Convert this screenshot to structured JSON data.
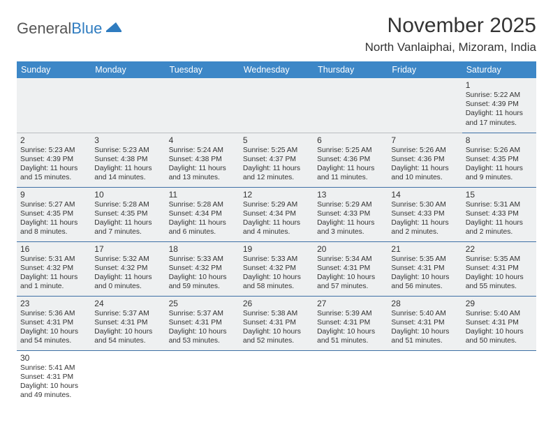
{
  "logo": {
    "text_general": "General",
    "text_blue": "Blue"
  },
  "title": "November 2025",
  "location": "North Vanlaiphai, Mizoram, India",
  "colors": {
    "header_bg": "#3d87c7",
    "header_text": "#ffffff",
    "cell_bg": "#eef0f1",
    "cell_border": "#3d6fa5",
    "logo_blue": "#2f7cc0"
  },
  "day_headers": [
    "Sunday",
    "Monday",
    "Tuesday",
    "Wednesday",
    "Thursday",
    "Friday",
    "Saturday"
  ],
  "weeks": [
    [
      null,
      null,
      null,
      null,
      null,
      null,
      {
        "n": "1",
        "sr": "Sunrise: 5:22 AM",
        "ss": "Sunset: 4:39 PM",
        "dl": "Daylight: 11 hours and 17 minutes."
      }
    ],
    [
      {
        "n": "2",
        "sr": "Sunrise: 5:23 AM",
        "ss": "Sunset: 4:39 PM",
        "dl": "Daylight: 11 hours and 15 minutes."
      },
      {
        "n": "3",
        "sr": "Sunrise: 5:23 AM",
        "ss": "Sunset: 4:38 PM",
        "dl": "Daylight: 11 hours and 14 minutes."
      },
      {
        "n": "4",
        "sr": "Sunrise: 5:24 AM",
        "ss": "Sunset: 4:38 PM",
        "dl": "Daylight: 11 hours and 13 minutes."
      },
      {
        "n": "5",
        "sr": "Sunrise: 5:25 AM",
        "ss": "Sunset: 4:37 PM",
        "dl": "Daylight: 11 hours and 12 minutes."
      },
      {
        "n": "6",
        "sr": "Sunrise: 5:25 AM",
        "ss": "Sunset: 4:36 PM",
        "dl": "Daylight: 11 hours and 11 minutes."
      },
      {
        "n": "7",
        "sr": "Sunrise: 5:26 AM",
        "ss": "Sunset: 4:36 PM",
        "dl": "Daylight: 11 hours and 10 minutes."
      },
      {
        "n": "8",
        "sr": "Sunrise: 5:26 AM",
        "ss": "Sunset: 4:35 PM",
        "dl": "Daylight: 11 hours and 9 minutes."
      }
    ],
    [
      {
        "n": "9",
        "sr": "Sunrise: 5:27 AM",
        "ss": "Sunset: 4:35 PM",
        "dl": "Daylight: 11 hours and 8 minutes."
      },
      {
        "n": "10",
        "sr": "Sunrise: 5:28 AM",
        "ss": "Sunset: 4:35 PM",
        "dl": "Daylight: 11 hours and 7 minutes."
      },
      {
        "n": "11",
        "sr": "Sunrise: 5:28 AM",
        "ss": "Sunset: 4:34 PM",
        "dl": "Daylight: 11 hours and 6 minutes."
      },
      {
        "n": "12",
        "sr": "Sunrise: 5:29 AM",
        "ss": "Sunset: 4:34 PM",
        "dl": "Daylight: 11 hours and 4 minutes."
      },
      {
        "n": "13",
        "sr": "Sunrise: 5:29 AM",
        "ss": "Sunset: 4:33 PM",
        "dl": "Daylight: 11 hours and 3 minutes."
      },
      {
        "n": "14",
        "sr": "Sunrise: 5:30 AM",
        "ss": "Sunset: 4:33 PM",
        "dl": "Daylight: 11 hours and 2 minutes."
      },
      {
        "n": "15",
        "sr": "Sunrise: 5:31 AM",
        "ss": "Sunset: 4:33 PM",
        "dl": "Daylight: 11 hours and 2 minutes."
      }
    ],
    [
      {
        "n": "16",
        "sr": "Sunrise: 5:31 AM",
        "ss": "Sunset: 4:32 PM",
        "dl": "Daylight: 11 hours and 1 minute."
      },
      {
        "n": "17",
        "sr": "Sunrise: 5:32 AM",
        "ss": "Sunset: 4:32 PM",
        "dl": "Daylight: 11 hours and 0 minutes."
      },
      {
        "n": "18",
        "sr": "Sunrise: 5:33 AM",
        "ss": "Sunset: 4:32 PM",
        "dl": "Daylight: 10 hours and 59 minutes."
      },
      {
        "n": "19",
        "sr": "Sunrise: 5:33 AM",
        "ss": "Sunset: 4:32 PM",
        "dl": "Daylight: 10 hours and 58 minutes."
      },
      {
        "n": "20",
        "sr": "Sunrise: 5:34 AM",
        "ss": "Sunset: 4:31 PM",
        "dl": "Daylight: 10 hours and 57 minutes."
      },
      {
        "n": "21",
        "sr": "Sunrise: 5:35 AM",
        "ss": "Sunset: 4:31 PM",
        "dl": "Daylight: 10 hours and 56 minutes."
      },
      {
        "n": "22",
        "sr": "Sunrise: 5:35 AM",
        "ss": "Sunset: 4:31 PM",
        "dl": "Daylight: 10 hours and 55 minutes."
      }
    ],
    [
      {
        "n": "23",
        "sr": "Sunrise: 5:36 AM",
        "ss": "Sunset: 4:31 PM",
        "dl": "Daylight: 10 hours and 54 minutes."
      },
      {
        "n": "24",
        "sr": "Sunrise: 5:37 AM",
        "ss": "Sunset: 4:31 PM",
        "dl": "Daylight: 10 hours and 54 minutes."
      },
      {
        "n": "25",
        "sr": "Sunrise: 5:37 AM",
        "ss": "Sunset: 4:31 PM",
        "dl": "Daylight: 10 hours and 53 minutes."
      },
      {
        "n": "26",
        "sr": "Sunrise: 5:38 AM",
        "ss": "Sunset: 4:31 PM",
        "dl": "Daylight: 10 hours and 52 minutes."
      },
      {
        "n": "27",
        "sr": "Sunrise: 5:39 AM",
        "ss": "Sunset: 4:31 PM",
        "dl": "Daylight: 10 hours and 51 minutes."
      },
      {
        "n": "28",
        "sr": "Sunrise: 5:40 AM",
        "ss": "Sunset: 4:31 PM",
        "dl": "Daylight: 10 hours and 51 minutes."
      },
      {
        "n": "29",
        "sr": "Sunrise: 5:40 AM",
        "ss": "Sunset: 4:31 PM",
        "dl": "Daylight: 10 hours and 50 minutes."
      }
    ],
    [
      {
        "n": "30",
        "sr": "Sunrise: 5:41 AM",
        "ss": "Sunset: 4:31 PM",
        "dl": "Daylight: 10 hours and 49 minutes."
      },
      null,
      null,
      null,
      null,
      null,
      null
    ]
  ]
}
